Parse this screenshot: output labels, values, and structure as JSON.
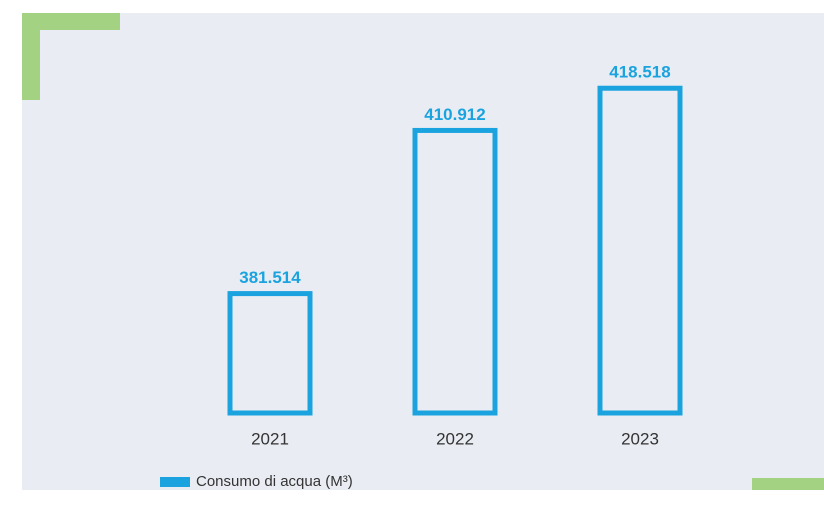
{
  "chart_data": {
    "type": "bar",
    "categories": [
      "2021",
      "2022",
      "2023"
    ],
    "series": [
      {
        "name": "Consumo di acqua (M³)",
        "color": "#1aa3df",
        "values": [
          381514,
          410912,
          418518
        ],
        "value_labels": [
          "381.514",
          "410.912",
          "418.518"
        ]
      }
    ],
    "ylim": [
      360000,
      420000
    ]
  }
}
